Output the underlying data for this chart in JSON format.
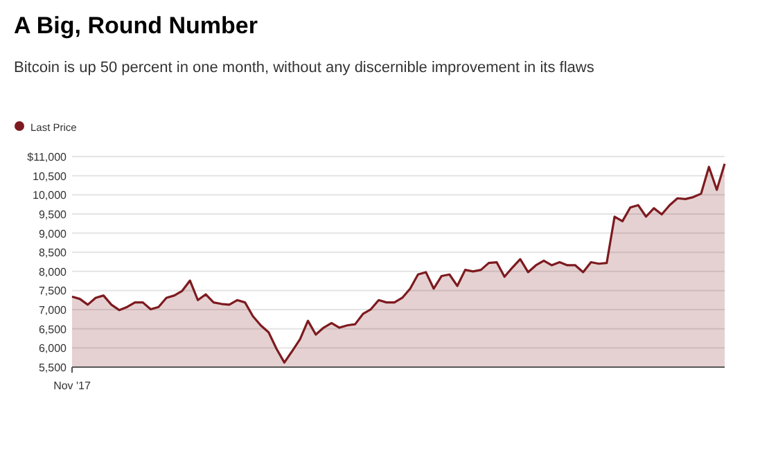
{
  "chart_data": {
    "type": "area",
    "title": "A Big, Round Number",
    "subtitle": "Bitcoin is up 50 percent in one month, without any discernible improvement in its flaws",
    "categories": [
      "Nov '17",
      null,
      null,
      null,
      null,
      null,
      null,
      null,
      null,
      null,
      null,
      null,
      null,
      null,
      null,
      null,
      null,
      null,
      null,
      null,
      null,
      null,
      null,
      null,
      null,
      null,
      null,
      null,
      null,
      null,
      null,
      null,
      null,
      null,
      null,
      null,
      null,
      null,
      null,
      null,
      null,
      null,
      null,
      null,
      null,
      null,
      null,
      null,
      null,
      null,
      null,
      null,
      null,
      null,
      null,
      null,
      null,
      null,
      null,
      null,
      null,
      null,
      null,
      null,
      null,
      null,
      null,
      null,
      null,
      null,
      null,
      null,
      null,
      null,
      null,
      null,
      null,
      null,
      null,
      null,
      null,
      null,
      null,
      null
    ],
    "series": [
      {
        "name": "Last Price",
        "color": "#7d1a1f",
        "values": [
          7340,
          7280,
          7130,
          7310,
          7370,
          7130,
          6990,
          7070,
          7190,
          7190,
          7010,
          7070,
          7310,
          7370,
          7490,
          7760,
          7250,
          7400,
          7190,
          7150,
          7130,
          7250,
          7190,
          6830,
          6590,
          6410,
          5980,
          5620,
          5920,
          6230,
          6710,
          6350,
          6530,
          6650,
          6530,
          6590,
          6620,
          6890,
          7010,
          7250,
          7190,
          7190,
          7310,
          7550,
          7920,
          7980,
          7550,
          7880,
          7920,
          7620,
          8040,
          8000,
          8040,
          8220,
          8240,
          7860,
          8100,
          8320,
          7980,
          8160,
          8280,
          8160,
          8240,
          8160,
          8160,
          7980,
          8240,
          8200,
          8220,
          9430,
          9310,
          9670,
          9730,
          9430,
          9650,
          9490,
          9730,
          9910,
          9890,
          9940,
          10030,
          10730,
          10130,
          10810
        ]
      }
    ],
    "ylim": [
      5500,
      11000
    ],
    "yticks": [
      {
        "value": 5500,
        "label": "5,500"
      },
      {
        "value": 6000,
        "label": "6,000"
      },
      {
        "value": 6500,
        "label": "6,500"
      },
      {
        "value": 7000,
        "label": "7,000"
      },
      {
        "value": 7500,
        "label": "7,500"
      },
      {
        "value": 8000,
        "label": "8,000"
      },
      {
        "value": 8500,
        "label": "8,500"
      },
      {
        "value": 9000,
        "label": "9,000"
      },
      {
        "value": 9500,
        "label": "9,500"
      },
      {
        "value": 10000,
        "label": "10,000"
      },
      {
        "value": 10500,
        "label": "10,500"
      },
      {
        "value": 11000,
        "label": "$11,000"
      }
    ],
    "grid": "y",
    "legend": "top left",
    "marker": "none",
    "line_style": "solid"
  }
}
